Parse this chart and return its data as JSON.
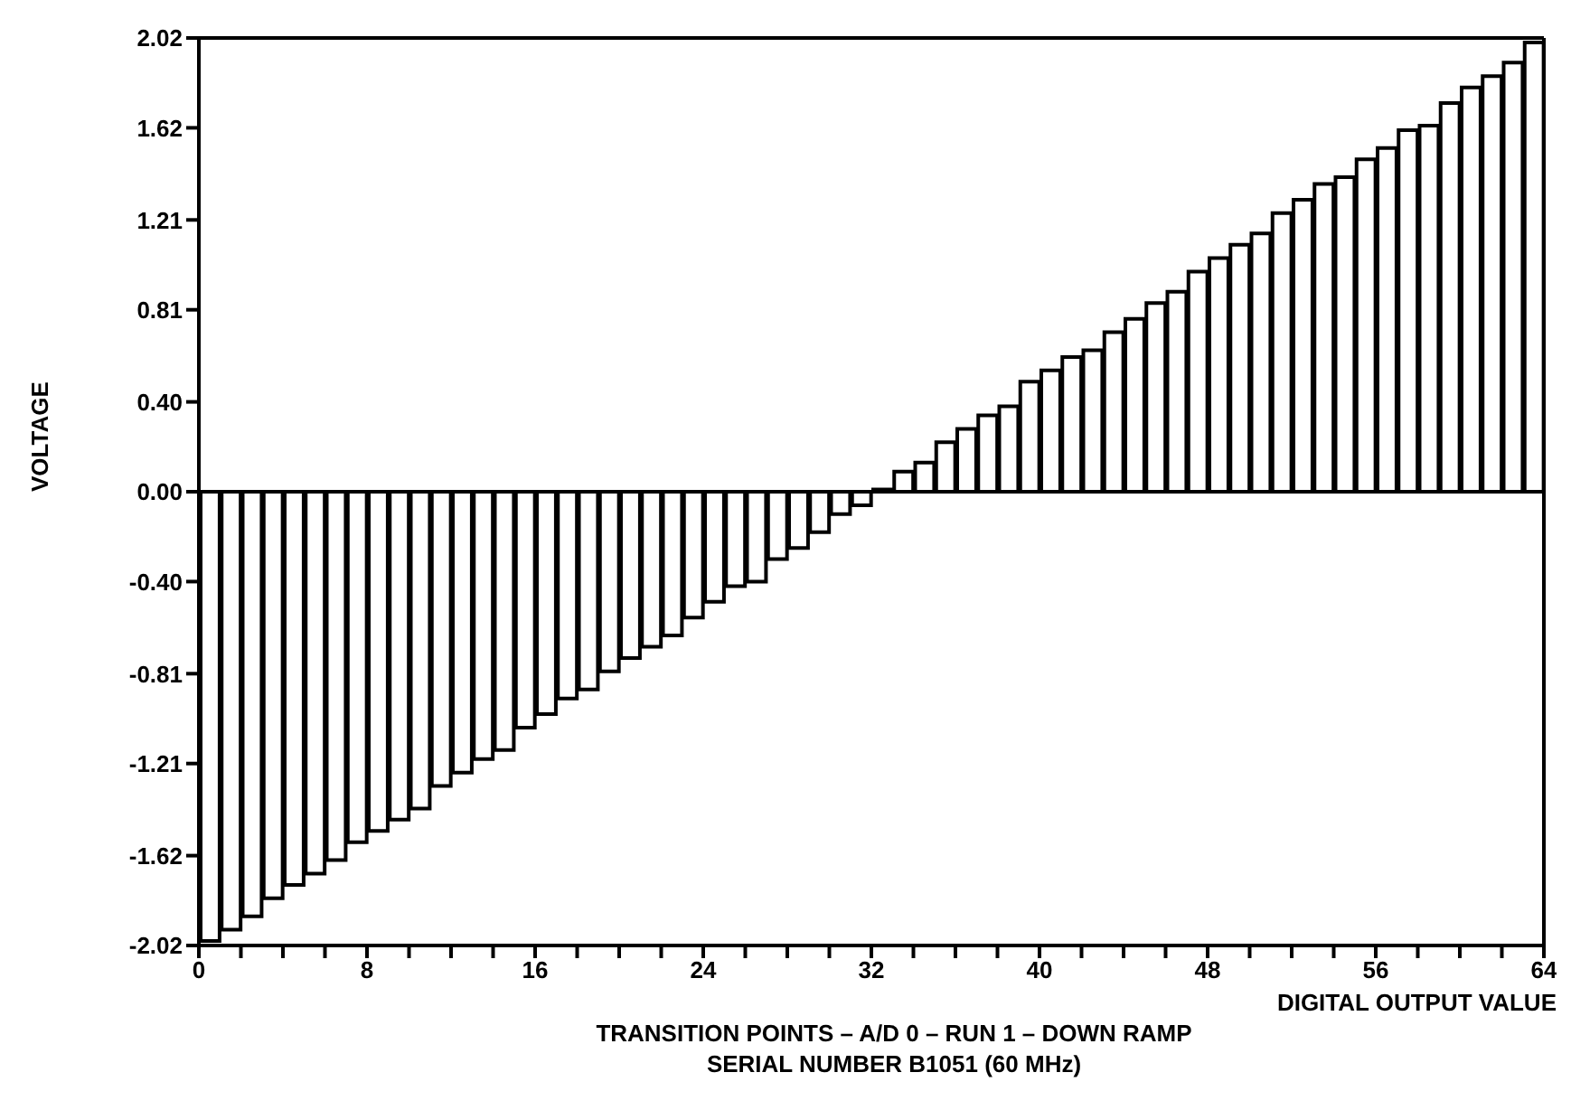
{
  "chart_data": {
    "type": "bar",
    "xlabel": "DIGITAL OUTPUT VALUE",
    "ylabel": "VOLTAGE",
    "annotations": [
      "TRANSITION POINTS – A/D 0 – RUN 1 – DOWN RAMP",
      "SERIAL NUMBER B1051 (60 MHz)"
    ],
    "x": [
      0.5,
      1.5,
      2.5,
      3.5,
      4.5,
      5.5,
      6.5,
      7.5,
      8.5,
      9.5,
      10.5,
      11.5,
      12.5,
      13.5,
      14.5,
      15.5,
      16.5,
      17.5,
      18.5,
      19.5,
      20.5,
      21.5,
      22.5,
      23.5,
      24.5,
      25.5,
      26.5,
      27.5,
      28.5,
      29.5,
      30.5,
      31.5,
      32.5,
      33.5,
      34.5,
      35.5,
      36.5,
      37.5,
      38.5,
      39.5,
      40.5,
      41.5,
      42.5,
      43.5,
      44.5,
      45.5,
      46.5,
      47.5,
      48.5,
      49.5,
      50.5,
      51.5,
      52.5,
      53.5,
      54.5,
      55.5,
      56.5,
      57.5,
      58.5,
      59.5,
      60.5,
      61.5,
      62.5,
      63.5
    ],
    "values": [
      -2.0,
      -1.95,
      -1.89,
      -1.81,
      -1.75,
      -1.7,
      -1.64,
      -1.56,
      -1.51,
      -1.46,
      -1.41,
      -1.31,
      -1.25,
      -1.19,
      -1.15,
      -1.05,
      -0.99,
      -0.92,
      -0.88,
      -0.8,
      -0.74,
      -0.69,
      -0.64,
      -0.56,
      -0.49,
      -0.42,
      -0.4,
      -0.3,
      -0.25,
      -0.18,
      -0.1,
      -0.06,
      0.01,
      0.09,
      0.13,
      0.22,
      0.28,
      0.34,
      0.38,
      0.49,
      0.54,
      0.6,
      0.63,
      0.71,
      0.77,
      0.84,
      0.89,
      0.98,
      1.04,
      1.1,
      1.15,
      1.24,
      1.3,
      1.37,
      1.4,
      1.48,
      1.53,
      1.61,
      1.63,
      1.73,
      1.8,
      1.85,
      1.91,
      2.0
    ],
    "color": "#000000",
    "xlim": [
      0,
      64
    ],
    "xticks": [
      0,
      {
        "value": 2,
        "label": null
      },
      {
        "value": 4,
        "label": null
      },
      {
        "value": 6,
        "label": null
      },
      8,
      {
        "value": 10,
        "label": null
      },
      {
        "value": 12,
        "label": null
      },
      {
        "value": 14,
        "label": null
      },
      16,
      {
        "value": 18,
        "label": null
      },
      {
        "value": 20,
        "label": null
      },
      {
        "value": 22,
        "label": null
      },
      24,
      {
        "value": 26,
        "label": null
      },
      {
        "value": 28,
        "label": null
      },
      {
        "value": 30,
        "label": null
      },
      32,
      {
        "value": 34,
        "label": null
      },
      {
        "value": 36,
        "label": null
      },
      {
        "value": 38,
        "label": null
      },
      40,
      {
        "value": 42,
        "label": null
      },
      {
        "value": 44,
        "label": null
      },
      {
        "value": 46,
        "label": null
      },
      48,
      {
        "value": 50,
        "label": null
      },
      {
        "value": 52,
        "label": null
      },
      {
        "value": 54,
        "label": null
      },
      56,
      {
        "value": 58,
        "label": null
      },
      {
        "value": 60,
        "label": null
      },
      {
        "value": 62,
        "label": null
      },
      64
    ],
    "ylim": [
      -2.02,
      2.02
    ],
    "yticks": [
      -2.02,
      -1.62,
      -1.21,
      -0.81,
      {
        "value": -0.4,
        "label": "-0.40"
      },
      {
        "value": 0,
        "label": "0.00"
      },
      {
        "value": 0.4,
        "label": "0.40"
      },
      0.81,
      1.21,
      1.62,
      2.02
    ],
    "grid": false,
    "legend": false
  }
}
